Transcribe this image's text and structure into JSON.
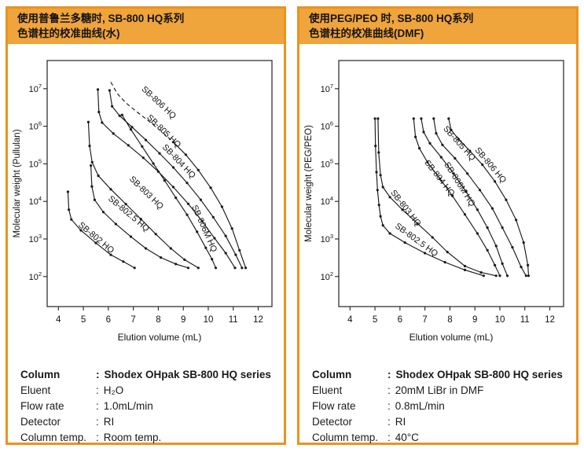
{
  "accent_color": "#E8941F",
  "titlebar_color": "#F0A43C",
  "curve_color": "#1a1a1a",
  "panels": [
    {
      "title_lines": [
        "使用普鲁兰多糖时, SB-800 HQ系列",
        "色谱柱的校准曲线(水)"
      ],
      "conditions": [
        {
          "label": "Column",
          "value": "Shodex OHpak SB-800 HQ series",
          "bold": true
        },
        {
          "label": "Eluent",
          "value": "H₂O"
        },
        {
          "label": "Flow rate",
          "value": "1.0mL/min"
        },
        {
          "label": "Detector",
          "value": "RI"
        },
        {
          "label": "Column temp.",
          "value": "Room temp."
        }
      ]
    },
    {
      "title_lines": [
        "使用PEG/PEO 时, SB-800 HQ系列",
        "色谱柱的校准曲线(DMF)"
      ],
      "conditions": [
        {
          "label": "Column",
          "value": "Shodex OHpak SB-800 HQ series",
          "bold": true
        },
        {
          "label": "Eluent",
          "value": "20mM LiBr in DMF"
        },
        {
          "label": "Flow rate",
          "value": "0.8mL/min"
        },
        {
          "label": "Detector",
          "value": "RI"
        },
        {
          "label": "Column temp.",
          "value": "40°C"
        }
      ]
    }
  ],
  "chart_data": [
    {
      "type": "line",
      "title": "",
      "xlabel": "Elution volume (mL)",
      "ylabel": "Molecular weight (Pullulan)",
      "xlim": [
        3.55,
        12.55
      ],
      "x_ticks": [
        4,
        5,
        6,
        7,
        8,
        9,
        10,
        11,
        12
      ],
      "y_scale": "log",
      "ylim_log10": [
        1.2,
        7.75
      ],
      "y_ticks_exponents": [
        2,
        3,
        4,
        5,
        6,
        7
      ],
      "grid": false,
      "legend": "labels-on-curves",
      "series": [
        {
          "name": "SB-802 HQ",
          "points": [
            [
              4.38,
              18000
            ],
            [
              4.42,
              6000
            ],
            [
              4.52,
              3300
            ],
            [
              4.9,
              1700
            ],
            [
              5.5,
              780
            ],
            [
              6.1,
              380
            ],
            [
              6.6,
              250
            ],
            [
              7.05,
              170
            ]
          ],
          "label_at": [
            5.45,
            2.98
          ],
          "label_angle": 40
        },
        {
          "name": "SB-802.5 HQ",
          "points": [
            [
              5.3,
              90000
            ],
            [
              5.34,
              25000
            ],
            [
              5.45,
              11000
            ],
            [
              5.8,
              5200
            ],
            [
              6.3,
              2500
            ],
            [
              6.9,
              1150
            ],
            [
              7.5,
              560
            ],
            [
              8.1,
              320
            ],
            [
              8.7,
              215
            ],
            [
              9.2,
              170
            ]
          ],
          "label_at": [
            6.75,
            3.62
          ],
          "label_angle": 40
        },
        {
          "name": "SB-803 HQ",
          "points": [
            [
              5.2,
              1300000
            ],
            [
              5.25,
              300000
            ],
            [
              5.35,
              110000
            ],
            [
              5.6,
              48000
            ],
            [
              6.1,
              21000
            ],
            [
              6.7,
              8500
            ],
            [
              7.3,
              3400
            ],
            [
              7.9,
              1350
            ],
            [
              8.5,
              560
            ],
            [
              9.05,
              280
            ],
            [
              9.6,
              170
            ]
          ],
          "label_at": [
            7.45,
            4.18
          ],
          "label_angle": 44
        },
        {
          "name": "SB-804 HQ",
          "points": [
            [
              5.58,
              9500000
            ],
            [
              5.62,
              2400000
            ],
            [
              5.75,
              1250000
            ],
            [
              6.2,
              640000
            ],
            [
              6.8,
              310000
            ],
            [
              7.4,
              145000
            ],
            [
              8.0,
              62000
            ],
            [
              8.6,
              24000
            ],
            [
              9.2,
              8600
            ],
            [
              9.75,
              3000
            ],
            [
              10.25,
              1050
            ],
            [
              10.7,
              420
            ],
            [
              11.07,
              170
            ]
          ],
          "label_at": [
            8.75,
            5.02
          ],
          "label_angle": 46
        },
        {
          "name": "SB-805 HQ",
          "points": [
            [
              6.05,
              9000000
            ],
            [
              6.15,
              3400000
            ],
            [
              6.45,
              1900000
            ],
            [
              6.95,
              950000
            ],
            [
              7.5,
              430000
            ],
            [
              8.05,
              190000
            ],
            [
              8.6,
              80000
            ],
            [
              9.15,
              31000
            ],
            [
              9.7,
              11000
            ],
            [
              10.2,
              3800
            ],
            [
              10.7,
              1200
            ],
            [
              11.1,
              380
            ],
            [
              11.35,
              170
            ]
          ],
          "label_at": [
            8.15,
            5.82
          ],
          "label_angle": 44
        },
        {
          "name": "SB-806 HQ",
          "points": [
            [
              6.1,
              15000000
            ],
            [
              6.35,
              7500000
            ],
            [
              6.7,
              4200000
            ],
            [
              7.15,
              2400000
            ],
            [
              7.6,
              1400000
            ],
            [
              8.1,
              750000
            ],
            [
              8.6,
              380000
            ],
            [
              9.1,
              175000
            ],
            [
              9.6,
              68000
            ],
            [
              10.1,
              23000
            ],
            [
              10.55,
              7200
            ],
            [
              10.95,
              1900
            ],
            [
              11.25,
              500
            ],
            [
              11.5,
              170
            ]
          ],
          "dash_until": 6,
          "label_at": [
            7.95,
            6.58
          ],
          "label_angle": 43
        },
        {
          "name": "SB-806M HQ",
          "points": [
            [
              6.55,
              2000000
            ],
            [
              6.9,
              820000
            ],
            [
              7.35,
              290000
            ],
            [
              7.8,
              102000
            ],
            [
              8.25,
              36000
            ],
            [
              8.7,
              12500
            ],
            [
              9.15,
              4400
            ],
            [
              9.55,
              1550
            ],
            [
              9.9,
              580
            ],
            [
              10.15,
              290
            ],
            [
              10.3,
              170
            ]
          ],
          "label_at": [
            9.75,
            3.25
          ],
          "label_angle": 66
        }
      ]
    },
    {
      "type": "line",
      "title": "",
      "xlabel": "Elution volume (mL)",
      "ylabel": "Molecular weight (PEG/PEO)",
      "xlim": [
        3.55,
        12.55
      ],
      "x_ticks": [
        4,
        5,
        6,
        7,
        8,
        9,
        10,
        11,
        12
      ],
      "y_scale": "log",
      "ylim_log10": [
        1.2,
        7.75
      ],
      "y_ticks_exponents": [
        2,
        3,
        4,
        5,
        6,
        7
      ],
      "grid": false,
      "legend": "labels-on-curves",
      "series": [
        {
          "name": "SB-802.5 HQ",
          "points": [
            [
              5.0,
              1600000
            ],
            [
              5.02,
              300000
            ],
            [
              5.06,
              60000
            ],
            [
              5.1,
              20000
            ],
            [
              5.16,
              8000
            ],
            [
              5.22,
              4000
            ],
            [
              5.32,
              2300
            ],
            [
              5.6,
              1400
            ],
            [
              6.2,
              800
            ],
            [
              7.0,
              420
            ],
            [
              7.8,
              240
            ],
            [
              8.6,
              150
            ],
            [
              9.35,
              105
            ]
          ],
          "label_at": [
            6.6,
            2.92
          ],
          "label_angle": 36
        },
        {
          "name": "SB-803 HQ",
          "points": [
            [
              5.12,
              1600000
            ],
            [
              5.15,
              200000
            ],
            [
              5.22,
              50000
            ],
            [
              5.32,
              24000
            ],
            [
              5.6,
              13000
            ],
            [
              6.1,
              6000
            ],
            [
              6.7,
              2600
            ],
            [
              7.3,
              1100
            ],
            [
              7.9,
              450
            ],
            [
              8.6,
              190
            ],
            [
              9.25,
              128
            ],
            [
              9.85,
              105
            ]
          ],
          "label_at": [
            6.15,
            3.78
          ],
          "label_angle": 52
        },
        {
          "name": "SB-804 HQ",
          "points": [
            [
              6.55,
              1600000
            ],
            [
              6.62,
              520000
            ],
            [
              6.78,
              260000
            ],
            [
              7.1,
              110000
            ],
            [
              7.6,
              40000
            ],
            [
              8.1,
              14000
            ],
            [
              8.6,
              4500
            ],
            [
              9.1,
              1400
            ],
            [
              9.5,
              500
            ],
            [
              9.8,
              200
            ],
            [
              10.0,
              105
            ]
          ],
          "label_at": [
            7.5,
            4.58
          ],
          "label_angle": 52
        },
        {
          "name": "SB-806M HQ",
          "points": [
            [
              6.85,
              1600000
            ],
            [
              6.95,
              700000
            ],
            [
              7.2,
              350000
            ],
            [
              7.65,
              150000
            ],
            [
              8.15,
              55000
            ],
            [
              8.65,
              18000
            ],
            [
              9.1,
              6000
            ],
            [
              9.5,
              2000
            ],
            [
              9.85,
              650
            ],
            [
              10.1,
              220
            ],
            [
              10.3,
              105
            ]
          ],
          "label_at": [
            8.3,
            4.42
          ],
          "label_angle": 58
        },
        {
          "name": "SB-805 HQ",
          "points": [
            [
              7.35,
              1600000
            ],
            [
              7.45,
              650000
            ],
            [
              7.7,
              320000
            ],
            [
              8.2,
              140000
            ],
            [
              8.7,
              55000
            ],
            [
              9.2,
              20000
            ],
            [
              9.7,
              6500
            ],
            [
              10.1,
              2000
            ],
            [
              10.5,
              600
            ],
            [
              10.85,
              180
            ],
            [
              11.05,
              105
            ]
          ],
          "label_at": [
            8.3,
            5.5
          ],
          "label_angle": 48
        },
        {
          "name": "SB-806 HQ",
          "points": [
            [
              7.95,
              1600000
            ],
            [
              8.05,
              800000
            ],
            [
              8.35,
              450000
            ],
            [
              8.8,
              220000
            ],
            [
              9.3,
              95000
            ],
            [
              9.8,
              34000
            ],
            [
              10.25,
              11000
            ],
            [
              10.65,
              3200
            ],
            [
              10.95,
              800
            ],
            [
              11.12,
              200
            ],
            [
              11.15,
              105
            ]
          ],
          "label_at": [
            9.55,
            4.92
          ],
          "label_angle": 50
        }
      ]
    }
  ]
}
